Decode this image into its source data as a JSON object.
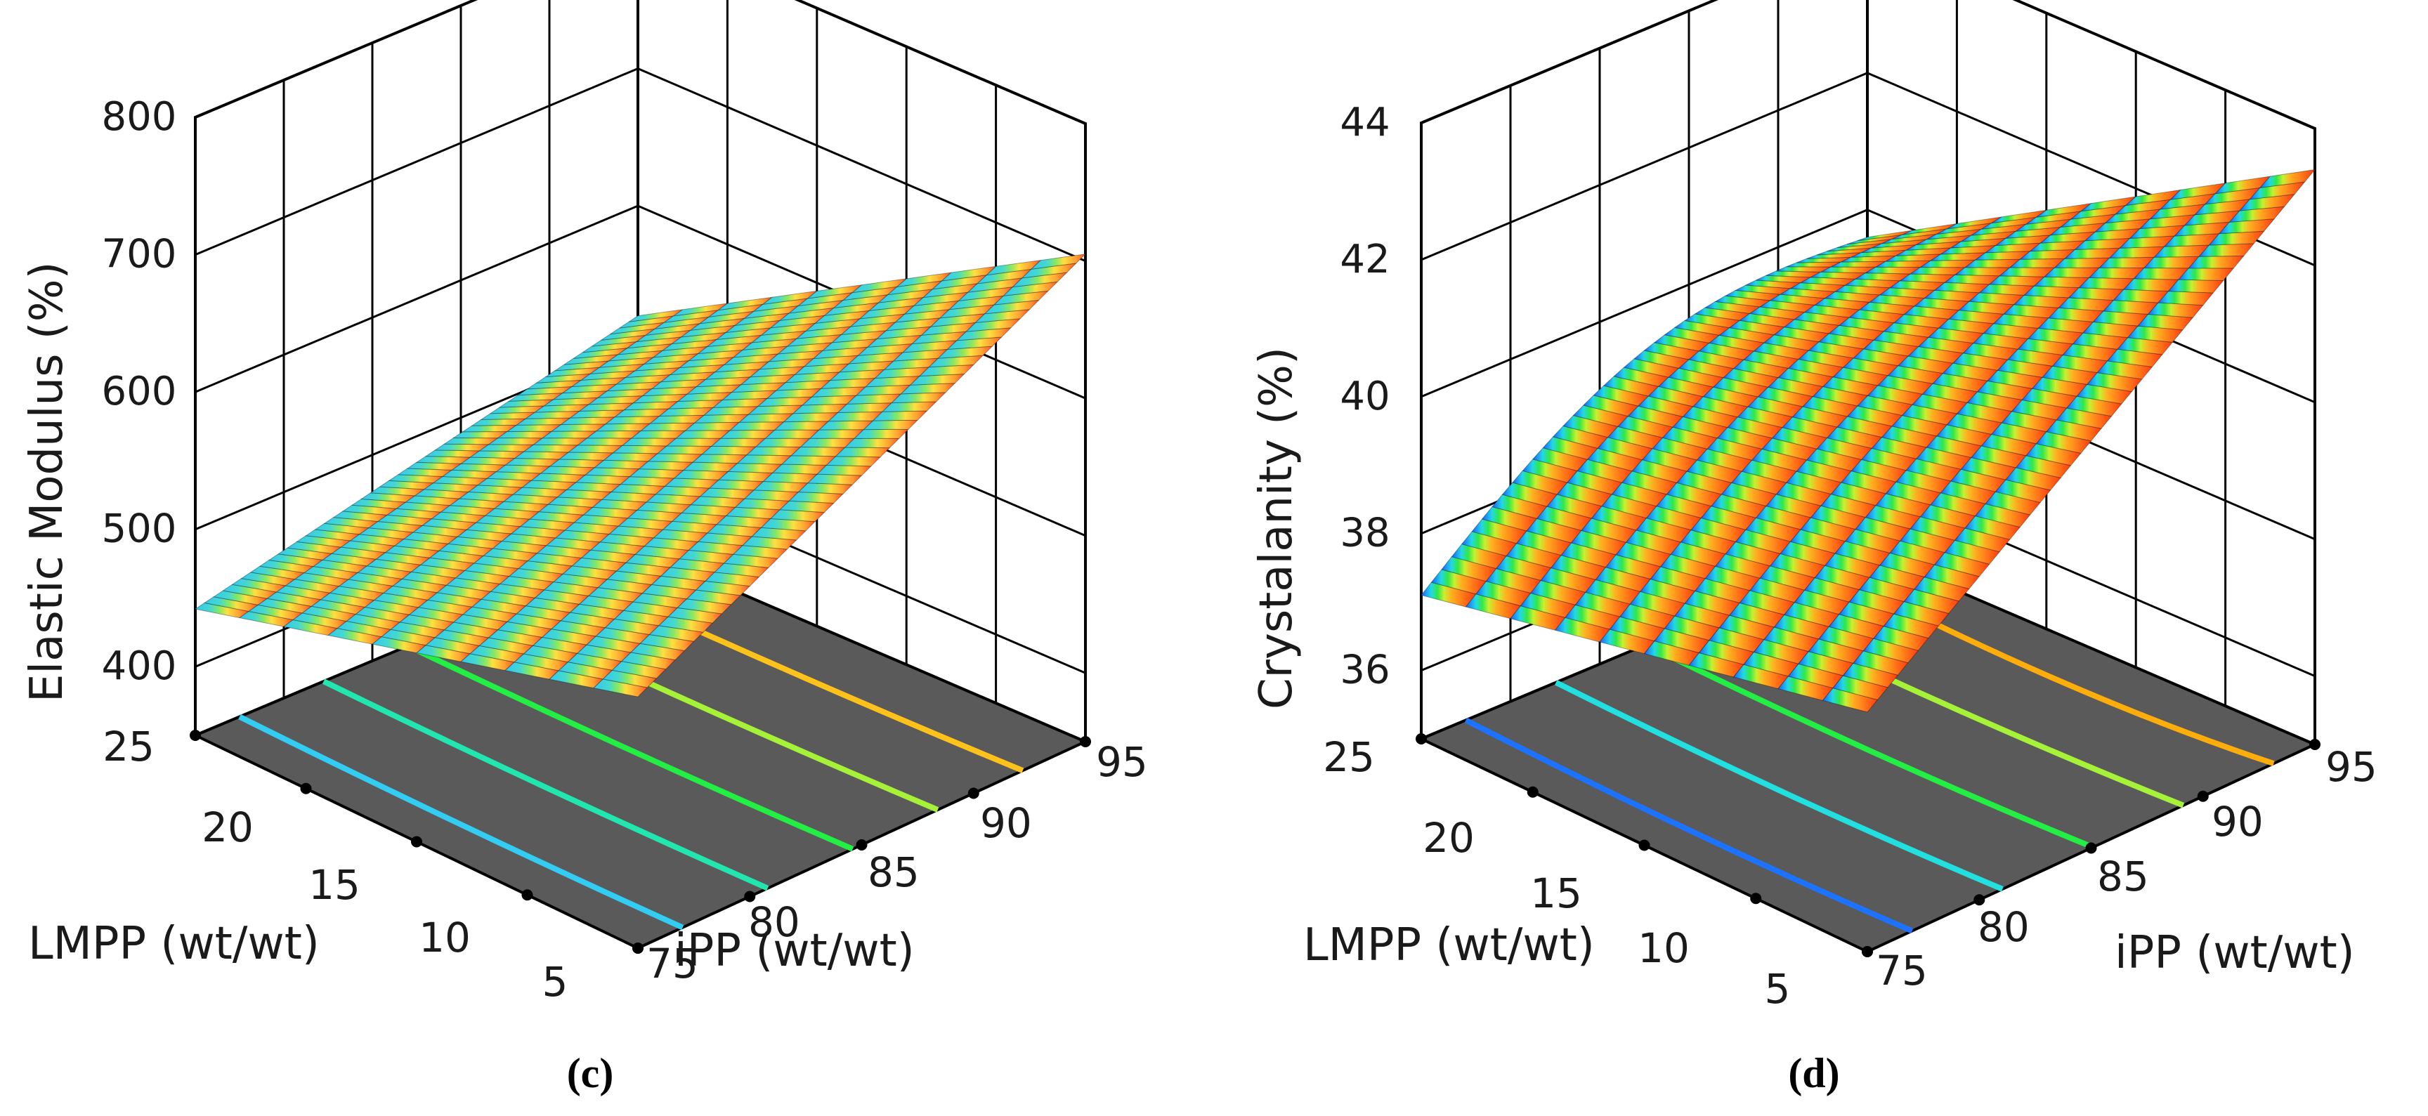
{
  "chart_data": [
    {
      "type": "surface3d",
      "panel": "(c)",
      "zlabel": "Elastic Modulus (%)",
      "xlabel": "LMPP (wt/wt)",
      "ylabel": "iPP (wt/wt)",
      "x_ticks": [
        "25",
        "20",
        "15",
        "10",
        "5"
      ],
      "y_ticks": [
        "75",
        "80",
        "85",
        "90",
        "95"
      ],
      "z_ticks": [
        "400",
        "500",
        "600",
        "700",
        "800"
      ],
      "zlim": [
        350,
        800
      ],
      "surface": {
        "z_at_lmpp25_ipp75": 442,
        "z_at_lmpp25_ipp95": 520,
        "z_at_lmpp5_ipp75": 533,
        "z_at_lmpp5_ipp95": 705
      },
      "contours": [
        {
          "color": "#33ccf2",
          "level": 1
        },
        {
          "color": "#22e6b0",
          "level": 2
        },
        {
          "color": "#22ee44",
          "level": 3
        },
        {
          "color": "#a6f238",
          "level": 4
        },
        {
          "color": "#ffc21a",
          "level": 5
        }
      ],
      "colors": {
        "floor": "#5a5a5a",
        "lines": "#000000"
      }
    },
    {
      "type": "surface3d",
      "panel": "(d)",
      "zlabel": "Crystalanity (%)",
      "xlabel": "LMPP (wt/wt)",
      "ylabel": "iPP (wt/wt)",
      "x_ticks": [
        "25",
        "20",
        "15",
        "10",
        "5"
      ],
      "y_ticks": [
        "75",
        "80",
        "85",
        "90",
        "95"
      ],
      "z_ticks": [
        "36",
        "38",
        "40",
        "42",
        "44"
      ],
      "zlim": [
        35,
        44
      ],
      "surface": {
        "z_at_lmpp25_ipp75": 37.1,
        "z_at_lmpp25_ipp95": 39.6,
        "z_at_lmpp5_ipp75": 38.5,
        "z_at_lmpp5_ipp95": 43.4
      },
      "contours": [
        {
          "color": "#1c73ff",
          "level": 1
        },
        {
          "color": "#22e0e0",
          "level": 2
        },
        {
          "color": "#22ee44",
          "level": 3
        },
        {
          "color": "#a6f238",
          "level": 4
        },
        {
          "color": "#ffad0a",
          "level": 5
        }
      ],
      "colors": {
        "floor": "#5a5a5a",
        "lines": "#000000"
      }
    }
  ]
}
